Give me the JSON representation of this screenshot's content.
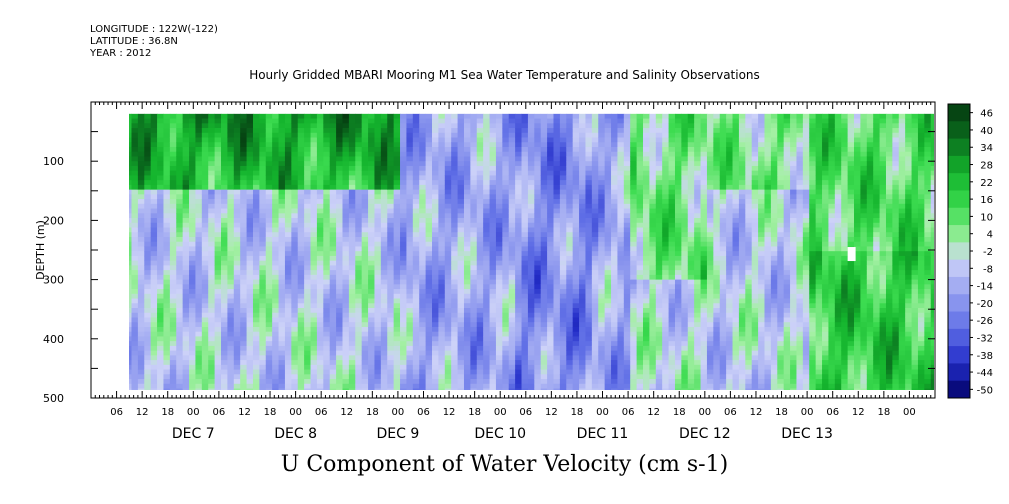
{
  "header": {
    "longitude": "LONGITUDE : 122W(-122)",
    "latitude": "LATITUDE : 36.8N",
    "year": "YEAR : 2012"
  },
  "plot_title": "Hourly Gridded MBARI Mooring M1 Sea Water Temperature and Salinity Observations",
  "main_title": "U Component of Water Velocity (cm s-1)",
  "chart_data": {
    "type": "heatmap",
    "ylabel": "DEPTH (m)",
    "ylim": [
      500,
      0
    ],
    "y_ticks": [
      100,
      200,
      300,
      400,
      500
    ],
    "y_tick_labels": [
      "100",
      "200",
      "300",
      "400",
      "500"
    ],
    "y_data_range": [
      20,
      485
    ],
    "x_range_hours": "Dec 6 00:00 to Dec 14 06:00",
    "x_data_start": "DEC 6 08:00",
    "x_data_end": "DEC 14 06:00",
    "x_hour_labels": [
      "06",
      "12",
      "18",
      "00",
      "06",
      "12",
      "18",
      "00",
      "06",
      "12",
      "18",
      "00",
      "06",
      "12",
      "18",
      "00",
      "06",
      "12",
      "18",
      "00",
      "06",
      "12",
      "18",
      "00",
      "06",
      "12",
      "18",
      "00",
      "06",
      "12",
      "18",
      "00"
    ],
    "day_labels": [
      "DEC  7",
      "DEC  8",
      "DEC  9",
      "DEC 10",
      "DEC 11",
      "DEC 12",
      "DEC 13"
    ],
    "colorbar_levels": [
      "46",
      "40",
      "34",
      "28",
      "22",
      "16",
      "10",
      "4",
      "-2",
      "-8",
      "-14",
      "-20",
      "-26",
      "-32",
      "-38",
      "-44",
      "-50"
    ],
    "colorbar_range": [
      -50,
      52
    ],
    "colors": {
      "strong_positive": "#0a4a1a",
      "positive": "#14c23c",
      "weak_positive": "#a6f0a6",
      "weak_negative": "#aab4ee",
      "negative": "#5060dd",
      "strong_negative": "#000a70"
    },
    "observed_pattern": [
      {
        "period": "DEC 6 08:00-DEC 9 00:00",
        "depth": "20-150 m",
        "u_range": "16 to 40"
      },
      {
        "period": "DEC 6 08:00-DEC 9 00:00",
        "depth": "150-485 m",
        "u_range": "-14 to 10"
      },
      {
        "period": "DEC 9 12:00-DEC 11 06:00",
        "depth": "20-485 m",
        "u_range": "-26 to -2"
      },
      {
        "period": "DEC 11 12:00-DEC 12 00:00",
        "depth": "20-300 m",
        "u_range": "4 to 22"
      },
      {
        "period": "DEC 12 06:00-DEC 13 00:00",
        "depth": "20-485 m",
        "u_range": "-8 to 16"
      },
      {
        "period": "DEC 13 00:00-DEC 14 06:00",
        "depth": "20-485 m",
        "u_range": "4 to 28"
      },
      {
        "period": "DEC 13 09:00",
        "depth": "250-260 m",
        "u_range": "missing"
      }
    ],
    "grid": false,
    "colorbar_position": "right"
  }
}
